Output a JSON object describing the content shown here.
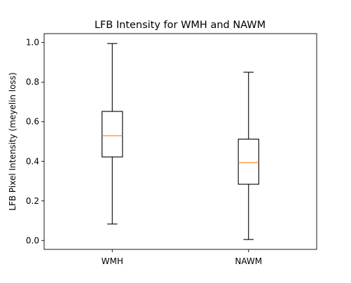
{
  "chart_data": {
    "type": "box",
    "title": "LFB Intensity for WMH and NAWM",
    "xlabel": "",
    "ylabel": "LFB Pixel Intensity (meyelin loss)",
    "ylim": [
      -0.045,
      1.045
    ],
    "yticks": [
      0.0,
      0.2,
      0.4,
      0.6,
      0.8,
      1.0
    ],
    "ytick_labels": [
      "0.0",
      "0.2",
      "0.4",
      "0.6",
      "0.8",
      "1.0"
    ],
    "categories": [
      "WMH",
      "NAWM"
    ],
    "boxes": [
      {
        "label": "WMH",
        "whisker_low": 0.083,
        "q1": 0.422,
        "median": 0.529,
        "q3": 0.652,
        "whisker_high": 0.995
      },
      {
        "label": "NAWM",
        "whisker_low": 0.005,
        "q1": 0.284,
        "median": 0.393,
        "q3": 0.512,
        "whisker_high": 0.85
      }
    ],
    "grid": false,
    "colors": {
      "box": "#000000",
      "median": "#ff7f0e",
      "axes": "#000000"
    }
  }
}
